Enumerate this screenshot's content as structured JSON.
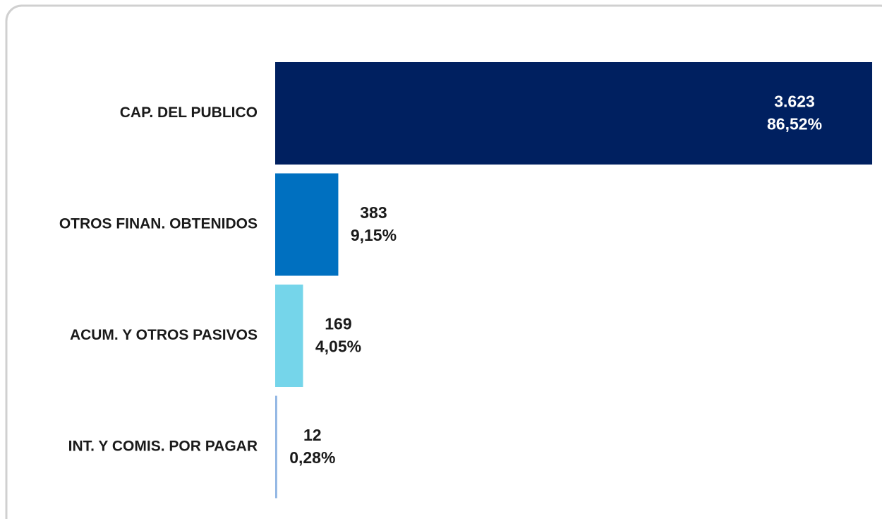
{
  "chart_data": {
    "type": "barh",
    "categories": [
      "CAP. DEL PUBLICO",
      "OTROS FINAN. OBTENIDOS",
      "ACUM. Y OTROS PASIVOS",
      "INT. Y COMIS. POR PAGAR"
    ],
    "values": [
      3623,
      383,
      169,
      12
    ],
    "value_labels": [
      "3.623",
      "383",
      "169",
      "12"
    ],
    "shares": [
      86.52,
      9.15,
      4.05,
      0.28
    ],
    "share_labels": [
      "86,52%",
      "9,15%",
      "4,05%",
      "0,28%"
    ],
    "colors": [
      "#002060",
      "#0070c0",
      "#75d5ea",
      "#8eb4e3"
    ],
    "xlim": [
      0,
      3640
    ]
  }
}
